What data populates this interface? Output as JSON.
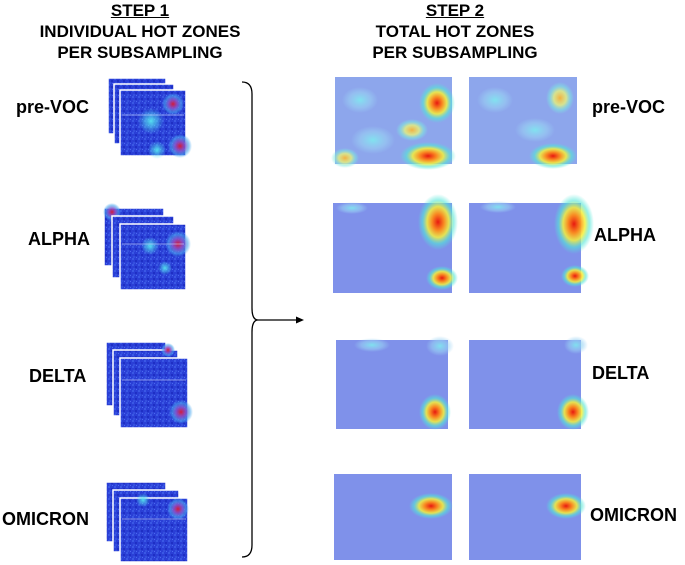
{
  "step1": {
    "title": "STEP 1",
    "line1": "INDIVIDUAL HOT ZONES",
    "line2": "PER SUBSAMPLING"
  },
  "step2": {
    "title": "STEP 2",
    "line1": "TOTAL HOT ZONES",
    "line2": "PER SUBSAMPLING"
  },
  "variants": [
    {
      "label": "pre-VOC"
    },
    {
      "label": "ALPHA"
    },
    {
      "label": "DELTA"
    },
    {
      "label": "OMICRON"
    }
  ],
  "colors": {
    "low": "#2338d8",
    "mid": "#3fd8f0",
    "high": "#ff2a10",
    "faded_background": "#7f91ea"
  }
}
